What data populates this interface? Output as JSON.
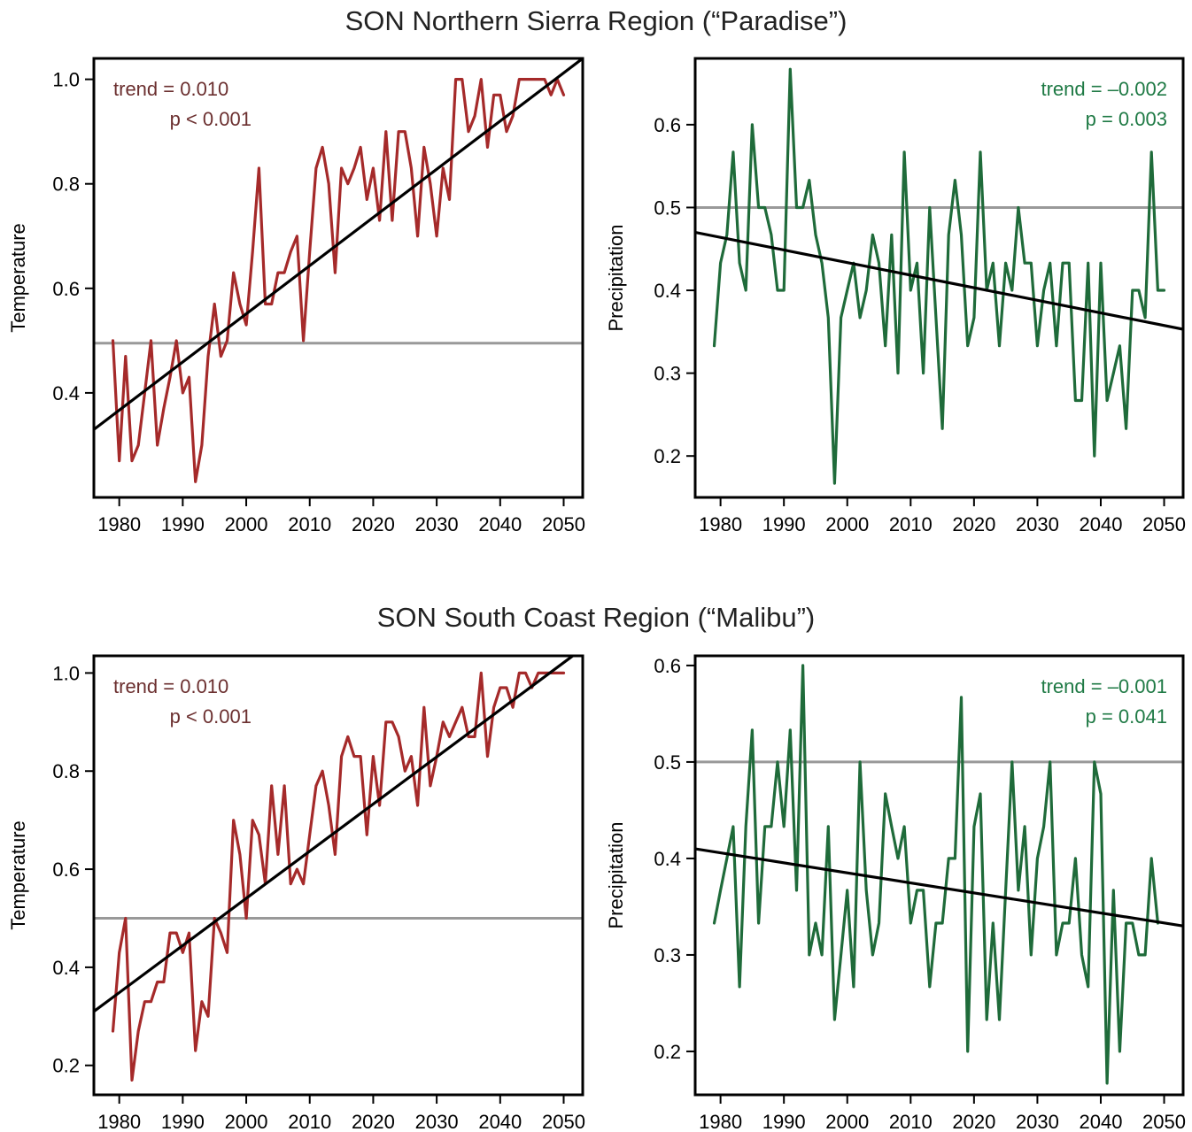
{
  "titles": {
    "top": "SON Northern Sierra Region (“Paradise”)",
    "bottom": "SON South Coast Region (“Malibu”)"
  },
  "colors": {
    "temperature": "#a52a2a",
    "temperature_text": "#6b2f2f",
    "precipitation": "#1f6b3a",
    "precipitation_text": "#1f7a45",
    "trend_line": "#000000",
    "reference_line": "#999999"
  },
  "chart_data": [
    {
      "type": "line",
      "id": "paradise-temperature",
      "ylabel": "Temperature",
      "xlabel": "",
      "xlim": [
        1976,
        2053
      ],
      "ylim": [
        0.2,
        1.04
      ],
      "xticks": [
        1980,
        1990,
        2000,
        2010,
        2020,
        2030,
        2040,
        2050
      ],
      "yticks": [
        0.4,
        0.6,
        0.8,
        1.0
      ],
      "ytick_labels": [
        "0.4",
        "0.6",
        "0.8",
        "1.0"
      ],
      "reference": 0.495,
      "trend_line": {
        "x": [
          1976,
          2053
        ],
        "y": [
          0.33,
          1.04
        ]
      },
      "annotation": {
        "trend": "trend = 0.010",
        "p": "p < 0.001",
        "align": "top-left"
      },
      "x": [
        1979,
        1980,
        1981,
        1982,
        1983,
        1984,
        1985,
        1986,
        1987,
        1988,
        1989,
        1990,
        1991,
        1992,
        1993,
        1994,
        1995,
        1996,
        1997,
        1998,
        1999,
        2000,
        2001,
        2002,
        2003,
        2004,
        2005,
        2006,
        2007,
        2008,
        2009,
        2010,
        2011,
        2012,
        2013,
        2014,
        2015,
        2016,
        2017,
        2018,
        2019,
        2020,
        2021,
        2022,
        2023,
        2024,
        2025,
        2026,
        2027,
        2028,
        2029,
        2030,
        2031,
        2032,
        2033,
        2034,
        2035,
        2036,
        2037,
        2038,
        2039,
        2040,
        2041,
        2042,
        2043,
        2044,
        2045,
        2046,
        2047,
        2048,
        2049,
        2050
      ],
      "y": [
        0.5,
        0.27,
        0.47,
        0.27,
        0.3,
        0.4,
        0.5,
        0.3,
        0.37,
        0.43,
        0.5,
        0.4,
        0.43,
        0.23,
        0.3,
        0.47,
        0.57,
        0.47,
        0.5,
        0.63,
        0.57,
        0.53,
        0.67,
        0.83,
        0.57,
        0.57,
        0.63,
        0.63,
        0.67,
        0.7,
        0.5,
        0.67,
        0.83,
        0.87,
        0.8,
        0.63,
        0.83,
        0.8,
        0.83,
        0.87,
        0.77,
        0.83,
        0.73,
        0.9,
        0.73,
        0.9,
        0.9,
        0.83,
        0.7,
        0.87,
        0.8,
        0.7,
        0.83,
        0.77,
        1.0,
        1.0,
        0.9,
        0.93,
        1.0,
        0.87,
        0.97,
        0.97,
        0.9,
        0.93,
        1.0,
        1.0,
        1.0,
        1.0,
        1.0,
        0.97,
        1.0,
        0.97
      ]
    },
    {
      "type": "line",
      "id": "paradise-precipitation",
      "ylabel": "Precipitation",
      "xlabel": "",
      "xlim": [
        1976,
        2053
      ],
      "ylim": [
        0.15,
        0.68
      ],
      "xticks": [
        1980,
        1990,
        2000,
        2010,
        2020,
        2030,
        2040,
        2050
      ],
      "yticks": [
        0.2,
        0.3,
        0.4,
        0.5,
        0.6
      ],
      "ytick_labels": [
        "0.2",
        "0.3",
        "0.4",
        "0.5",
        "0.6"
      ],
      "reference": 0.5,
      "trend_line": {
        "x": [
          1976,
          2053
        ],
        "y": [
          0.47,
          0.353
        ]
      },
      "annotation": {
        "trend": "trend = –0.002",
        "p": "p = 0.003",
        "align": "top-right"
      },
      "x": [
        1979,
        1980,
        1981,
        1982,
        1983,
        1984,
        1985,
        1986,
        1987,
        1988,
        1989,
        1990,
        1991,
        1992,
        1993,
        1994,
        1995,
        1996,
        1997,
        1998,
        1999,
        2000,
        2001,
        2002,
        2003,
        2004,
        2005,
        2006,
        2007,
        2008,
        2009,
        2010,
        2011,
        2012,
        2013,
        2014,
        2015,
        2016,
        2017,
        2018,
        2019,
        2020,
        2021,
        2022,
        2023,
        2024,
        2025,
        2026,
        2027,
        2028,
        2029,
        2030,
        2031,
        2032,
        2033,
        2034,
        2035,
        2036,
        2037,
        2038,
        2039,
        2040,
        2041,
        2042,
        2043,
        2044,
        2045,
        2046,
        2047,
        2048,
        2049,
        2050
      ],
      "y": [
        0.333,
        0.433,
        0.467,
        0.567,
        0.433,
        0.4,
        0.6,
        0.5,
        0.5,
        0.467,
        0.4,
        0.4,
        0.667,
        0.5,
        0.5,
        0.533,
        0.467,
        0.433,
        0.367,
        0.167,
        0.367,
        0.4,
        0.433,
        0.367,
        0.4,
        0.467,
        0.433,
        0.333,
        0.467,
        0.3,
        0.567,
        0.4,
        0.433,
        0.3,
        0.5,
        0.367,
        0.233,
        0.467,
        0.533,
        0.467,
        0.333,
        0.367,
        0.567,
        0.4,
        0.433,
        0.333,
        0.433,
        0.4,
        0.5,
        0.433,
        0.433,
        0.333,
        0.4,
        0.433,
        0.333,
        0.433,
        0.433,
        0.267,
        0.267,
        0.433,
        0.2,
        0.433,
        0.267,
        0.3,
        0.333,
        0.233,
        0.4,
        0.4,
        0.367,
        0.567,
        0.4,
        0.4
      ]
    },
    {
      "type": "line",
      "id": "malibu-temperature",
      "ylabel": "Temperature",
      "xlabel": "",
      "xlim": [
        1976,
        2053
      ],
      "ylim": [
        0.14,
        1.035
      ],
      "xticks": [
        1980,
        1990,
        2000,
        2010,
        2020,
        2030,
        2040,
        2050
      ],
      "yticks": [
        0.2,
        0.4,
        0.6,
        0.8,
        1.0
      ],
      "ytick_labels": [
        "0.2",
        "0.4",
        "0.6",
        "0.8",
        "1.0"
      ],
      "reference": 0.5,
      "trend_line": {
        "x": [
          1976,
          2053
        ],
        "y": [
          0.31,
          1.05
        ]
      },
      "annotation": {
        "trend": "trend = 0.010",
        "p": "p < 0.001",
        "align": "top-left"
      },
      "x": [
        1979,
        1980,
        1981,
        1982,
        1983,
        1984,
        1985,
        1986,
        1987,
        1988,
        1989,
        1990,
        1991,
        1992,
        1993,
        1994,
        1995,
        1996,
        1997,
        1998,
        1999,
        2000,
        2001,
        2002,
        2003,
        2004,
        2005,
        2006,
        2007,
        2008,
        2009,
        2010,
        2011,
        2012,
        2013,
        2014,
        2015,
        2016,
        2017,
        2018,
        2019,
        2020,
        2021,
        2022,
        2023,
        2024,
        2025,
        2026,
        2027,
        2028,
        2029,
        2030,
        2031,
        2032,
        2033,
        2034,
        2035,
        2036,
        2037,
        2038,
        2039,
        2040,
        2041,
        2042,
        2043,
        2044,
        2045,
        2046,
        2047,
        2048,
        2049,
        2050
      ],
      "y": [
        0.27,
        0.43,
        0.5,
        0.17,
        0.27,
        0.33,
        0.33,
        0.37,
        0.37,
        0.47,
        0.47,
        0.43,
        0.47,
        0.23,
        0.33,
        0.3,
        0.5,
        0.47,
        0.43,
        0.7,
        0.63,
        0.5,
        0.7,
        0.67,
        0.57,
        0.77,
        0.63,
        0.77,
        0.57,
        0.6,
        0.57,
        0.67,
        0.77,
        0.8,
        0.73,
        0.63,
        0.83,
        0.87,
        0.83,
        0.83,
        0.67,
        0.83,
        0.73,
        0.9,
        0.9,
        0.87,
        0.8,
        0.83,
        0.73,
        0.93,
        0.77,
        0.83,
        0.9,
        0.87,
        0.9,
        0.93,
        0.87,
        0.87,
        1.0,
        0.83,
        0.93,
        0.97,
        0.97,
        0.93,
        1.0,
        1.0,
        0.97,
        1.0,
        1.0,
        1.0,
        1.0,
        1.0
      ]
    },
    {
      "type": "line",
      "id": "malibu-precipitation",
      "ylabel": "Precipitation",
      "xlabel": "",
      "xlim": [
        1976,
        2053
      ],
      "ylim": [
        0.155,
        0.61
      ],
      "xticks": [
        1980,
        1990,
        2000,
        2010,
        2020,
        2030,
        2040,
        2050
      ],
      "yticks": [
        0.2,
        0.3,
        0.4,
        0.5,
        0.6
      ],
      "ytick_labels": [
        "0.2",
        "0.3",
        "0.4",
        "0.5",
        "0.6"
      ],
      "reference": 0.5,
      "trend_line": {
        "x": [
          1976,
          2053
        ],
        "y": [
          0.41,
          0.33
        ]
      },
      "annotation": {
        "trend": "trend = –0.001",
        "p": "p = 0.041",
        "align": "top-right"
      },
      "x": [
        1979,
        1980,
        1981,
        1982,
        1983,
        1984,
        1985,
        1986,
        1987,
        1988,
        1989,
        1990,
        1991,
        1992,
        1993,
        1994,
        1995,
        1996,
        1997,
        1998,
        1999,
        2000,
        2001,
        2002,
        2003,
        2004,
        2005,
        2006,
        2007,
        2008,
        2009,
        2010,
        2011,
        2012,
        2013,
        2014,
        2015,
        2016,
        2017,
        2018,
        2019,
        2020,
        2021,
        2022,
        2023,
        2024,
        2025,
        2026,
        2027,
        2028,
        2029,
        2030,
        2031,
        2032,
        2033,
        2034,
        2035,
        2036,
        2037,
        2038,
        2039,
        2040,
        2041,
        2042,
        2043,
        2044,
        2045,
        2046,
        2047,
        2048,
        2049
      ],
      "y": [
        0.333,
        0.367,
        0.4,
        0.433,
        0.267,
        0.433,
        0.533,
        0.333,
        0.433,
        0.433,
        0.5,
        0.433,
        0.533,
        0.367,
        0.6,
        0.3,
        0.333,
        0.3,
        0.433,
        0.233,
        0.3,
        0.367,
        0.267,
        0.5,
        0.367,
        0.3,
        0.333,
        0.467,
        0.433,
        0.4,
        0.433,
        0.333,
        0.367,
        0.367,
        0.267,
        0.333,
        0.333,
        0.4,
        0.4,
        0.567,
        0.2,
        0.433,
        0.467,
        0.233,
        0.333,
        0.233,
        0.367,
        0.5,
        0.367,
        0.433,
        0.3,
        0.4,
        0.433,
        0.5,
        0.3,
        0.333,
        0.333,
        0.4,
        0.3,
        0.267,
        0.5,
        0.467,
        0.167,
        0.367,
        0.2,
        0.333,
        0.333,
        0.3,
        0.3,
        0.4,
        0.333
      ]
    }
  ]
}
